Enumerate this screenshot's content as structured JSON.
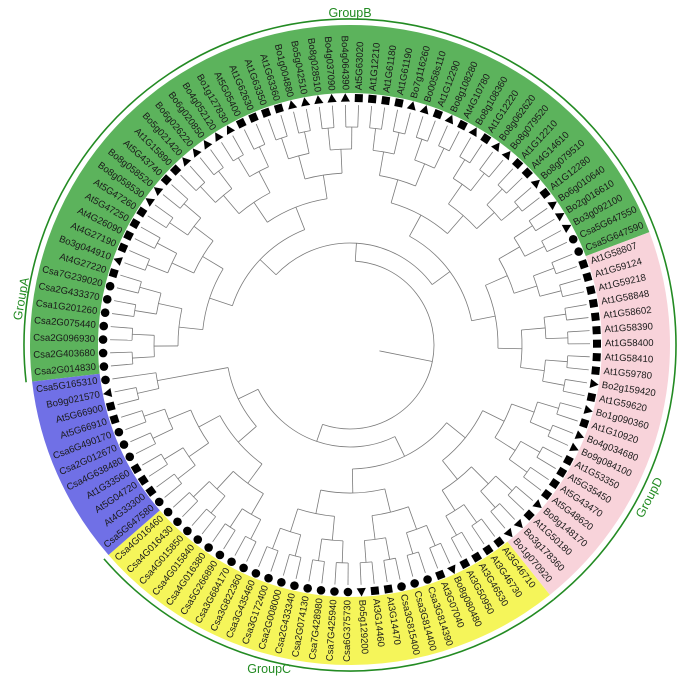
{
  "groups": [
    {
      "id": "A",
      "label": "GroupA",
      "color": "#7070e6"
    },
    {
      "id": "B",
      "label": "GroupB",
      "color": "#5cb35c"
    },
    {
      "id": "C",
      "label": "GroupC",
      "color": "#f5f55a"
    },
    {
      "id": "D",
      "label": "GroupD",
      "color": "#f8d3da"
    }
  ],
  "arc_color": "#238b23",
  "leaves": [
    {
      "label": "Csa2G014830",
      "group": "B",
      "marker": "circle"
    },
    {
      "label": "Csa2G403680",
      "group": "B",
      "marker": "circle"
    },
    {
      "label": "Csa2G096930",
      "group": "B",
      "marker": "circle"
    },
    {
      "label": "Csa2G075440",
      "group": "B",
      "marker": "circle"
    },
    {
      "label": "Csa1G201260",
      "group": "B",
      "marker": "circle"
    },
    {
      "label": "Csa2G433370",
      "group": "B",
      "marker": "circle"
    },
    {
      "label": "Csa7G239020",
      "group": "B",
      "marker": "circle"
    },
    {
      "label": "At4G27220",
      "group": "B",
      "marker": "square"
    },
    {
      "label": "Bo3g044910",
      "group": "B",
      "marker": "triangle"
    },
    {
      "label": "At4G27190",
      "group": "B",
      "marker": "square"
    },
    {
      "label": "At4G26090",
      "group": "B",
      "marker": "square"
    },
    {
      "label": "At5G47250",
      "group": "B",
      "marker": "square"
    },
    {
      "label": "At5G47260",
      "group": "B",
      "marker": "square"
    },
    {
      "label": "Bo8g058530",
      "group": "B",
      "marker": "triangle"
    },
    {
      "label": "Bo8g058520",
      "group": "B",
      "marker": "triangle"
    },
    {
      "label": "At5G43740",
      "group": "B",
      "marker": "square"
    },
    {
      "label": "At1G15890",
      "group": "B",
      "marker": "square"
    },
    {
      "label": "Bo5g021420",
      "group": "B",
      "marker": "triangle"
    },
    {
      "label": "Bo6g026220",
      "group": "B",
      "marker": "triangle"
    },
    {
      "label": "Bo6g020850",
      "group": "B",
      "marker": "triangle"
    },
    {
      "label": "Bo4g052120",
      "group": "B",
      "marker": "triangle"
    },
    {
      "label": "Bo1g127830",
      "group": "B",
      "marker": "triangle"
    },
    {
      "label": "At5G05400",
      "group": "B",
      "marker": "square"
    },
    {
      "label": "At1G62630",
      "group": "B",
      "marker": "square"
    },
    {
      "label": "At1G63350",
      "group": "B",
      "marker": "square"
    },
    {
      "label": "At1G63360",
      "group": "B",
      "marker": "square"
    },
    {
      "label": "Bo1g004880",
      "group": "B",
      "marker": "triangle"
    },
    {
      "label": "Bo5g042510",
      "group": "B",
      "marker": "triangle"
    },
    {
      "label": "Bo8g028510",
      "group": "B",
      "marker": "triangle"
    },
    {
      "label": "Bo4g037090",
      "group": "B",
      "marker": "triangle"
    },
    {
      "label": "Bo4g064390",
      "group": "B",
      "marker": "triangle"
    },
    {
      "label": "At5G63020",
      "group": "B",
      "marker": "square"
    },
    {
      "label": "At1G12210",
      "group": "B",
      "marker": "square"
    },
    {
      "label": "At1G61180",
      "group": "B",
      "marker": "square"
    },
    {
      "label": "At1G61190",
      "group": "B",
      "marker": "square"
    },
    {
      "label": "Bo7g116260",
      "group": "B",
      "marker": "triangle"
    },
    {
      "label": "Bo0058s110",
      "group": "B",
      "marker": "triangle"
    },
    {
      "label": "At1G12290",
      "group": "B",
      "marker": "square"
    },
    {
      "label": "Bo8g108280",
      "group": "B",
      "marker": "triangle"
    },
    {
      "label": "At4G10780",
      "group": "B",
      "marker": "square"
    },
    {
      "label": "Bo8g108360",
      "group": "B",
      "marker": "triangle"
    },
    {
      "label": "At1G12220",
      "group": "B",
      "marker": "square"
    },
    {
      "label": "Bo8g062620",
      "group": "B",
      "marker": "triangle"
    },
    {
      "label": "Bo8g079520",
      "group": "B",
      "marker": "triangle"
    },
    {
      "label": "At1G12210",
      "group": "B",
      "marker": "square"
    },
    {
      "label": "At4G14610",
      "group": "B",
      "marker": "square"
    },
    {
      "label": "Bo8g079510",
      "group": "B",
      "marker": "triangle"
    },
    {
      "label": "At1G12280",
      "group": "B",
      "marker": "square"
    },
    {
      "label": "Bo6g010640",
      "group": "B",
      "marker": "triangle"
    },
    {
      "label": "Bo2g016610",
      "group": "B",
      "marker": "triangle"
    },
    {
      "label": "Bo3g092100",
      "group": "B",
      "marker": "triangle"
    },
    {
      "label": "Csa5G647550",
      "group": "B",
      "marker": "circle"
    },
    {
      "label": "Csa5G647590",
      "group": "B",
      "marker": "circle"
    },
    {
      "label": "At1G58807",
      "group": "D",
      "marker": "square"
    },
    {
      "label": "At1G59124",
      "group": "D",
      "marker": "square"
    },
    {
      "label": "At1G59218",
      "group": "D",
      "marker": "square"
    },
    {
      "label": "At1G58848",
      "group": "D",
      "marker": "square"
    },
    {
      "label": "At1G58602",
      "group": "D",
      "marker": "square"
    },
    {
      "label": "At1G58390",
      "group": "D",
      "marker": "square"
    },
    {
      "label": "At1G58400",
      "group": "D",
      "marker": "square"
    },
    {
      "label": "At1G58410",
      "group": "D",
      "marker": "square"
    },
    {
      "label": "At1G59780",
      "group": "D",
      "marker": "square"
    },
    {
      "label": "Bo2g159420",
      "group": "D",
      "marker": "triangle"
    },
    {
      "label": "At1G59620",
      "group": "D",
      "marker": "square"
    },
    {
      "label": "Bo1g090360",
      "group": "D",
      "marker": "triangle"
    },
    {
      "label": "At1G10920",
      "group": "D",
      "marker": "square"
    },
    {
      "label": "Bo4g034680",
      "group": "D",
      "marker": "triangle"
    },
    {
      "label": "Bo9g084100",
      "group": "D",
      "marker": "triangle"
    },
    {
      "label": "At1G53350",
      "group": "D",
      "marker": "square"
    },
    {
      "label": "At5G35450",
      "group": "D",
      "marker": "square"
    },
    {
      "label": "At5G43470",
      "group": "D",
      "marker": "square"
    },
    {
      "label": "At5G48620",
      "group": "D",
      "marker": "square"
    },
    {
      "label": "Bo9g148170",
      "group": "D",
      "marker": "triangle"
    },
    {
      "label": "At1G50180",
      "group": "D",
      "marker": "square"
    },
    {
      "label": "Bo3g178360",
      "group": "D",
      "marker": "triangle"
    },
    {
      "label": "Bo1g070920",
      "group": "D",
      "marker": "triangle"
    },
    {
      "label": "At3G46710",
      "group": "C",
      "marker": "square"
    },
    {
      "label": "At3G46730",
      "group": "C",
      "marker": "square"
    },
    {
      "label": "At3G46530",
      "group": "C",
      "marker": "square"
    },
    {
      "label": "At3G50950",
      "group": "C",
      "marker": "square"
    },
    {
      "label": "Bo8g080480",
      "group": "C",
      "marker": "triangle"
    },
    {
      "label": "At3G07040",
      "group": "C",
      "marker": "square"
    },
    {
      "label": "Csa3G814390",
      "group": "C",
      "marker": "circle"
    },
    {
      "label": "Csa3G814400",
      "group": "C",
      "marker": "circle"
    },
    {
      "label": "Csa3G815400",
      "group": "C",
      "marker": "circle"
    },
    {
      "label": "At3G14470",
      "group": "C",
      "marker": "square"
    },
    {
      "label": "At3G14460",
      "group": "C",
      "marker": "square"
    },
    {
      "label": "Bo5g129200",
      "group": "C",
      "marker": "triangle"
    },
    {
      "label": "Csa6G375730",
      "group": "C",
      "marker": "circle"
    },
    {
      "label": "Csa7G425940",
      "group": "C",
      "marker": "circle"
    },
    {
      "label": "Csa7G428980",
      "group": "C",
      "marker": "circle"
    },
    {
      "label": "Csa2G074130",
      "group": "C",
      "marker": "circle"
    },
    {
      "label": "Csa2G433340",
      "group": "C",
      "marker": "circle"
    },
    {
      "label": "Csa2G008000",
      "group": "C",
      "marker": "circle"
    },
    {
      "label": "Csa3G172400",
      "group": "C",
      "marker": "circle"
    },
    {
      "label": "Csa3G435460",
      "group": "C",
      "marker": "circle"
    },
    {
      "label": "Csa3G822360",
      "group": "C",
      "marker": "circle"
    },
    {
      "label": "Csa3G684170",
      "group": "C",
      "marker": "circle"
    },
    {
      "label": "Csa5G266890",
      "group": "C",
      "marker": "circle"
    },
    {
      "label": "Csa4G016380",
      "group": "C",
      "marker": "circle"
    },
    {
      "label": "Csa4G015840",
      "group": "C",
      "marker": "circle"
    },
    {
      "label": "Csa4G015850",
      "group": "C",
      "marker": "circle"
    },
    {
      "label": "Csa4G016430",
      "group": "C",
      "marker": "circle"
    },
    {
      "label": "Csa4G016460",
      "group": "C",
      "marker": "circle"
    },
    {
      "label": "Csa5G647580",
      "group": "A",
      "marker": "circle"
    },
    {
      "label": "At4G33300",
      "group": "A",
      "marker": "square"
    },
    {
      "label": "At5G04720",
      "group": "A",
      "marker": "square"
    },
    {
      "label": "At1G33560",
      "group": "A",
      "marker": "square"
    },
    {
      "label": "Csa4G638480",
      "group": "A",
      "marker": "circle"
    },
    {
      "label": "Csa2G012670",
      "group": "A",
      "marker": "circle"
    },
    {
      "label": "Csa6G490170",
      "group": "A",
      "marker": "circle"
    },
    {
      "label": "At5G66910",
      "group": "A",
      "marker": "square"
    },
    {
      "label": "At5G66900",
      "group": "A",
      "marker": "square"
    },
    {
      "label": "Bo9g021570",
      "group": "A",
      "marker": "triangle"
    },
    {
      "label": "Csa5G165310",
      "group": "A",
      "marker": "circle"
    }
  ]
}
